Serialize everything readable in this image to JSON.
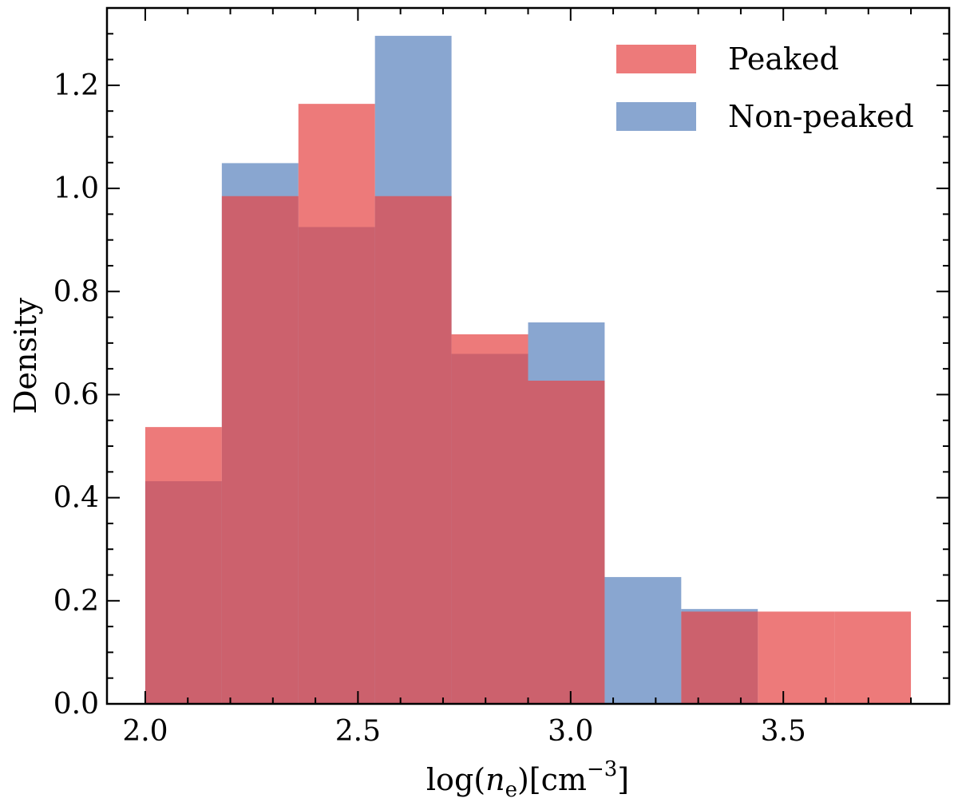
{
  "chart_data": {
    "type": "bar",
    "title": "",
    "xlabel": "log(n_e)[cm^-3]",
    "xlabel_parts": {
      "prefix": "log(",
      "var": "n",
      "sub": "e",
      "mid": ")[cm",
      "sup": "−3",
      "suffix": "]"
    },
    "ylabel": "Density",
    "xlim": [
      1.91,
      3.89
    ],
    "ylim": [
      0.0,
      1.35
    ],
    "xticks": [
      2.0,
      2.5,
      3.0,
      3.5
    ],
    "xtick_labels": [
      "2.0",
      "2.5",
      "3.0",
      "3.5"
    ],
    "yticks": [
      0.0,
      0.2,
      0.4,
      0.6,
      0.8,
      1.0,
      1.2
    ],
    "ytick_labels": [
      "0.0",
      "0.2",
      "0.4",
      "0.6",
      "0.8",
      "1.0",
      "1.2"
    ],
    "bin_edges": [
      2.0,
      2.18,
      2.36,
      2.54,
      2.72,
      2.9,
      3.08,
      3.26,
      3.44,
      3.62,
      3.8
    ],
    "series": [
      {
        "name": "Non-peaked",
        "color": "#4c78b8",
        "opacity": 0.66,
        "values": [
          0.432,
          1.049,
          0.925,
          1.296,
          0.679,
          0.74,
          0.246,
          0.184,
          0.0,
          0.0
        ]
      },
      {
        "name": "Peaked",
        "color": "#e64646",
        "opacity": 0.72,
        "values": [
          0.537,
          0.985,
          1.164,
          0.985,
          0.717,
          0.627,
          0.0,
          0.179,
          0.179,
          0.179
        ]
      }
    ],
    "legend": {
      "position": "top-right",
      "entries": [
        "Peaked",
        "Non-peaked"
      ]
    },
    "grid": false
  }
}
